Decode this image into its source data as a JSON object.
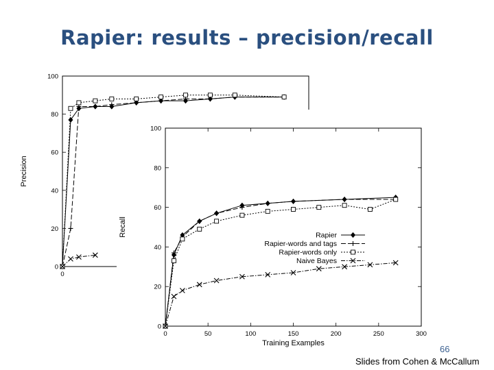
{
  "slide": {
    "title": "Rapier: results – precision/recall",
    "page_number": "66",
    "credit": "Slides from Cohen & McCallum"
  },
  "chart_data": [
    {
      "type": "line",
      "title": "",
      "xlabel": "",
      "ylabel": "Precision",
      "xlim": [
        0,
        300
      ],
      "ylim": [
        0,
        100
      ],
      "x_ticks": [
        "0"
      ],
      "y_ticks": [
        "0",
        "20",
        "40",
        "60",
        "80",
        "100"
      ],
      "grid": false,
      "partially_occluded": true,
      "series": [
        {
          "x": [
            0,
            10,
            20,
            40,
            60,
            90,
            120,
            150,
            180,
            210,
            270
          ],
          "y": [
            0,
            77,
            83,
            84,
            84,
            86,
            87,
            87,
            88,
            89,
            89
          ],
          "marker": "diamond",
          "dash": "solid"
        },
        {
          "x": [
            0,
            10,
            20,
            40,
            60,
            90,
            120,
            150,
            180,
            210,
            270
          ],
          "y": [
            0,
            20,
            84,
            84,
            85,
            86,
            87,
            88,
            88,
            89,
            89
          ],
          "marker": "plus",
          "dash": "longdash"
        },
        {
          "x": [
            0,
            10,
            20,
            40,
            60,
            90,
            120,
            150,
            180,
            210,
            270
          ],
          "y": [
            0,
            83,
            86,
            87,
            88,
            88,
            89,
            90,
            90,
            90,
            89
          ],
          "marker": "square",
          "dash": "dotted"
        },
        {
          "x": [
            0,
            10,
            20,
            40
          ],
          "y": [
            0,
            4,
            5,
            6
          ],
          "marker": "x",
          "dash": "dashdot"
        }
      ]
    },
    {
      "type": "line",
      "title": "",
      "xlabel": "Training Examples",
      "ylabel": "Recall",
      "xlim": [
        0,
        300
      ],
      "ylim": [
        0,
        100
      ],
      "x_ticks": [
        "0",
        "50",
        "100",
        "150",
        "200",
        "250",
        "300"
      ],
      "y_ticks": [
        "0",
        "20",
        "40",
        "60",
        "80",
        "100"
      ],
      "grid": false,
      "legend_position": "center-right",
      "series": [
        {
          "name": "Rapier",
          "x": [
            0,
            10,
            20,
            40,
            60,
            90,
            120,
            150,
            210,
            270
          ],
          "y": [
            0,
            36,
            46,
            53,
            57,
            61,
            62,
            63,
            64,
            65
          ],
          "marker": "diamond",
          "dash": "solid"
        },
        {
          "name": "Rapier-words and tags",
          "x": [
            0,
            10,
            20,
            40,
            60,
            90,
            120,
            150,
            210,
            270
          ],
          "y": [
            0,
            37,
            45,
            53,
            57,
            60,
            62,
            63,
            64,
            64
          ],
          "marker": "plus",
          "dash": "longdash"
        },
        {
          "name": "Rapier-words only",
          "x": [
            0,
            10,
            20,
            40,
            60,
            90,
            120,
            150,
            180,
            210,
            240,
            270
          ],
          "y": [
            0,
            33,
            44,
            49,
            53,
            56,
            58,
            59,
            60,
            61,
            59,
            64
          ],
          "marker": "square",
          "dash": "dotted"
        },
        {
          "name": "Naive Bayes",
          "x": [
            0,
            10,
            20,
            40,
            60,
            90,
            120,
            150,
            180,
            210,
            240,
            270
          ],
          "y": [
            0,
            15,
            18,
            21,
            23,
            25,
            26,
            27,
            29,
            30,
            31,
            32
          ],
          "marker": "x",
          "dash": "dashdot"
        }
      ]
    }
  ]
}
